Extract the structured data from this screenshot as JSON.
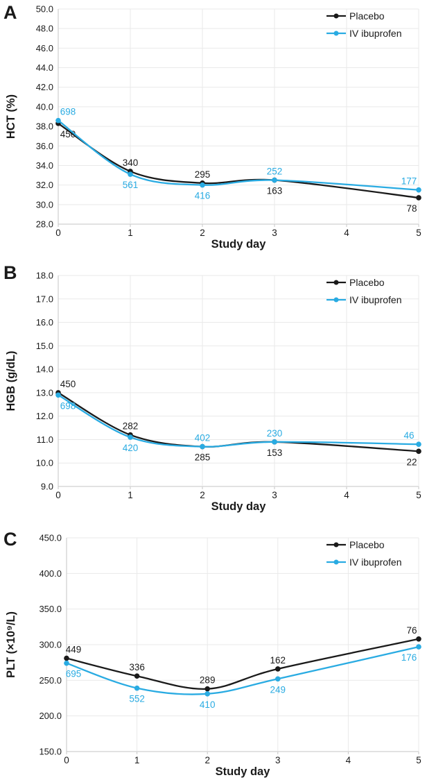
{
  "figure": {
    "background": "#ffffff",
    "grid_color": "#e9e9e9",
    "axis_color": "#c6c6c6",
    "text_color": "#1a1a1a",
    "x_label": "Study day",
    "x_ticks": [
      0,
      1,
      2,
      3,
      4,
      5
    ],
    "x_min": 0,
    "x_max": 5
  },
  "legend": {
    "items": [
      {
        "label": "Placebo",
        "color": "#1a1a1a"
      },
      {
        "label": "IV ibuprofen",
        "color": "#29abe2"
      }
    ]
  },
  "chart_data": [
    {
      "type": "line",
      "panel_label": "A",
      "ylabel": "HCT (%)",
      "xlabel": "Study day",
      "x": [
        0,
        1,
        2,
        3,
        5
      ],
      "ylim": [
        28.0,
        50.0
      ],
      "ytick_step": 2.0,
      "grid": true,
      "legend_position": "top-right",
      "series": [
        {
          "name": "Placebo",
          "color": "#1a1a1a",
          "values": [
            38.3,
            33.4,
            32.2,
            32.5,
            30.7
          ],
          "point_labels": [
            "450",
            "340",
            "295",
            "163",
            "78"
          ],
          "label_pos": [
            "below",
            "above",
            "above",
            "below",
            "below"
          ],
          "label_dx": [
            14,
            0,
            0,
            0,
            -10
          ]
        },
        {
          "name": "IV ibuprofen",
          "color": "#29abe2",
          "values": [
            38.6,
            33.1,
            32.0,
            32.5,
            31.5
          ],
          "point_labels": [
            "698",
            "561",
            "416",
            "252",
            "177"
          ],
          "label_pos": [
            "above",
            "below",
            "below",
            "above",
            "above"
          ],
          "label_dx": [
            14,
            0,
            0,
            0,
            -14
          ]
        }
      ]
    },
    {
      "type": "line",
      "panel_label": "B",
      "ylabel": "HGB (g/dL)",
      "xlabel": "Study day",
      "x": [
        0,
        1,
        2,
        3,
        5
      ],
      "ylim": [
        9.0,
        18.0
      ],
      "ytick_step": 1.0,
      "grid": true,
      "legend_position": "top-right",
      "series": [
        {
          "name": "Placebo",
          "color": "#1a1a1a",
          "values": [
            13.0,
            11.2,
            10.7,
            10.9,
            10.5
          ],
          "point_labels": [
            "450",
            "282",
            "285",
            "153",
            "22"
          ],
          "label_pos": [
            "above",
            "above",
            "below",
            "below",
            "below"
          ],
          "label_dx": [
            14,
            0,
            0,
            0,
            -10
          ]
        },
        {
          "name": "IV ibuprofen",
          "color": "#29abe2",
          "values": [
            12.9,
            11.1,
            10.7,
            10.9,
            10.8
          ],
          "point_labels": [
            "698",
            "420",
            "402",
            "230",
            "46"
          ],
          "label_pos": [
            "below",
            "below",
            "above",
            "above",
            "above"
          ],
          "label_dx": [
            14,
            0,
            0,
            0,
            -14
          ]
        }
      ]
    },
    {
      "type": "line",
      "panel_label": "C",
      "ylabel": "PLT (×10⁹/L)",
      "xlabel": "Study day",
      "x": [
        0,
        1,
        2,
        3,
        5
      ],
      "ylim": [
        150.0,
        450.0
      ],
      "ytick_step": 50.0,
      "grid": true,
      "legend_position": "top-right",
      "series": [
        {
          "name": "Placebo",
          "color": "#1a1a1a",
          "values": [
            281,
            256,
            238,
            266,
            308
          ],
          "point_labels": [
            "449",
            "336",
            "289",
            "162",
            "76"
          ],
          "label_pos": [
            "above",
            "above",
            "above",
            "above",
            "above"
          ],
          "label_dx": [
            10,
            0,
            0,
            0,
            -10
          ]
        },
        {
          "name": "IV ibuprofen",
          "color": "#29abe2",
          "values": [
            274,
            239,
            231,
            252,
            297
          ],
          "point_labels": [
            "695",
            "552",
            "410",
            "249",
            "176"
          ],
          "label_pos": [
            "below",
            "below",
            "below",
            "below",
            "below"
          ],
          "label_dx": [
            10,
            0,
            0,
            0,
            -14
          ]
        }
      ]
    }
  ]
}
